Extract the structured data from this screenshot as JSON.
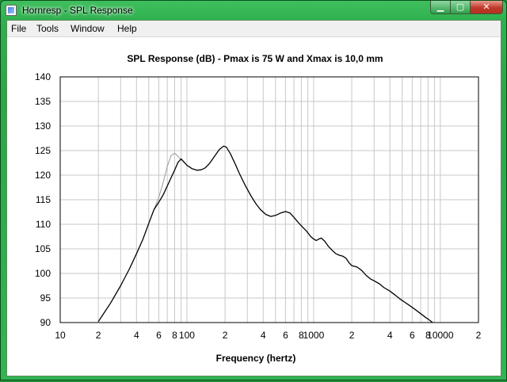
{
  "window": {
    "title": "Hornresp - SPL Response",
    "buttons": {
      "minimize": "▁",
      "maximize": "▢",
      "close": "✕"
    }
  },
  "menu": [
    "File",
    "Tools",
    "Window",
    "Help"
  ],
  "colors": {
    "window_frame": "#2fb04f",
    "grid": "#c8c8c8",
    "curve": "#000000",
    "curve_alt": "#9a9a9a"
  },
  "chart_data": {
    "type": "line",
    "title": "SPL Response (dB) - Pmax is 75 W and Xmax is 10,0 mm",
    "xlabel": "Frequency (hertz)",
    "ylabel": "",
    "xscale": "log",
    "xlim": [
      10,
      20000
    ],
    "ylim": [
      90,
      140
    ],
    "grid": true,
    "x_tick_labels": [
      {
        "x": 10,
        "label": "10"
      },
      {
        "x": 20,
        "label": "2"
      },
      {
        "x": 40,
        "label": "4"
      },
      {
        "x": 60,
        "label": "6"
      },
      {
        "x": 80,
        "label": "8"
      },
      {
        "x": 100,
        "label": "100"
      },
      {
        "x": 200,
        "label": "2"
      },
      {
        "x": 400,
        "label": "4"
      },
      {
        "x": 600,
        "label": "6"
      },
      {
        "x": 800,
        "label": "8"
      },
      {
        "x": 1000,
        "label": "1000"
      },
      {
        "x": 2000,
        "label": "2"
      },
      {
        "x": 4000,
        "label": "4"
      },
      {
        "x": 6000,
        "label": "6"
      },
      {
        "x": 8000,
        "label": "8"
      },
      {
        "x": 10000,
        "label": "10000"
      },
      {
        "x": 20000,
        "label": "2"
      }
    ],
    "y_ticks": [
      90,
      95,
      100,
      105,
      110,
      115,
      120,
      125,
      130,
      135,
      140
    ],
    "series": [
      {
        "role": "primary",
        "color": "#000000",
        "points": [
          [
            20,
            90.2
          ],
          [
            25,
            94.0
          ],
          [
            30,
            97.5
          ],
          [
            35,
            100.8
          ],
          [
            40,
            104.0
          ],
          [
            45,
            107.0
          ],
          [
            50,
            110.2
          ],
          [
            55,
            113.0
          ],
          [
            60,
            114.5
          ],
          [
            65,
            116.0
          ],
          [
            70,
            117.8
          ],
          [
            75,
            119.5
          ],
          [
            80,
            121.0
          ],
          [
            85,
            122.6
          ],
          [
            90,
            123.3
          ],
          [
            100,
            122.0
          ],
          [
            110,
            121.3
          ],
          [
            120,
            121.0
          ],
          [
            130,
            121.1
          ],
          [
            140,
            121.5
          ],
          [
            150,
            122.3
          ],
          [
            165,
            123.8
          ],
          [
            180,
            125.2
          ],
          [
            195,
            125.9
          ],
          [
            205,
            125.7
          ],
          [
            220,
            124.4
          ],
          [
            240,
            122.3
          ],
          [
            260,
            120.3
          ],
          [
            290,
            117.8
          ],
          [
            320,
            115.8
          ],
          [
            350,
            114.2
          ],
          [
            380,
            113.0
          ],
          [
            420,
            112.0
          ],
          [
            460,
            111.6
          ],
          [
            500,
            111.8
          ],
          [
            550,
            112.3
          ],
          [
            600,
            112.6
          ],
          [
            650,
            112.3
          ],
          [
            700,
            111.4
          ],
          [
            760,
            110.3
          ],
          [
            820,
            109.4
          ],
          [
            880,
            108.6
          ],
          [
            950,
            107.5
          ],
          [
            1000,
            107.0
          ],
          [
            1050,
            106.7
          ],
          [
            1100,
            107.0
          ],
          [
            1150,
            107.2
          ],
          [
            1220,
            106.6
          ],
          [
            1300,
            105.6
          ],
          [
            1400,
            104.7
          ],
          [
            1500,
            104.0
          ],
          [
            1600,
            103.7
          ],
          [
            1700,
            103.5
          ],
          [
            1800,
            103.1
          ],
          [
            1900,
            102.2
          ],
          [
            2000,
            101.6
          ],
          [
            2200,
            101.3
          ],
          [
            2400,
            100.6
          ],
          [
            2600,
            99.6
          ],
          [
            2800,
            98.9
          ],
          [
            3000,
            98.5
          ],
          [
            3300,
            97.9
          ],
          [
            3600,
            97.1
          ],
          [
            4000,
            96.4
          ],
          [
            4400,
            95.6
          ],
          [
            4800,
            94.8
          ],
          [
            5200,
            94.2
          ],
          [
            5700,
            93.5
          ],
          [
            6300,
            92.7
          ],
          [
            7000,
            91.8
          ],
          [
            7600,
            91.1
          ],
          [
            8200,
            90.5
          ],
          [
            8700,
            90.0
          ]
        ]
      },
      {
        "role": "secondary",
        "color": "#9a9a9a",
        "points": [
          [
            55,
            113.0
          ],
          [
            60,
            115.5
          ],
          [
            65,
            118.5
          ],
          [
            70,
            121.8
          ],
          [
            75,
            124.0
          ],
          [
            80,
            124.5
          ],
          [
            85,
            123.8
          ],
          [
            90,
            123.1
          ]
        ]
      }
    ]
  }
}
